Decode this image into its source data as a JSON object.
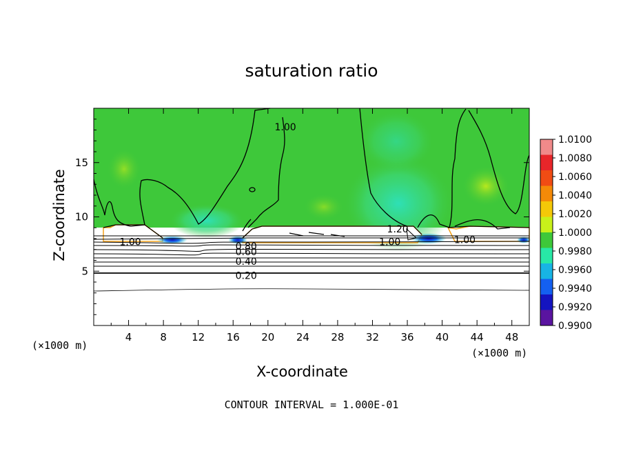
{
  "chart_data": {
    "type": "heatmap",
    "title": "saturation ratio",
    "xlabel": "X-coordinate",
    "ylabel": "Z-coordinate",
    "x_unit": "(×1000 m)",
    "x_unit_right": "(×1000 m)",
    "xlim": [
      0,
      50
    ],
    "ylim": [
      0,
      20
    ],
    "x_ticks": [
      4,
      8,
      12,
      16,
      20,
      24,
      28,
      32,
      36,
      40,
      44,
      48
    ],
    "y_ticks": [
      5,
      10,
      15
    ],
    "contour_interval_text": "CONTOUR INTERVAL = 1.000E-01",
    "colorbar": {
      "min": 0.99,
      "max": 1.01,
      "labels": [
        "1.0100",
        "1.0080",
        "1.0060",
        "1.0040",
        "1.0020",
        "1.0000",
        "0.9980",
        "0.9960",
        "0.9940",
        "0.9920",
        "0.9900"
      ],
      "colors": [
        "#f08a8a",
        "#e8262a",
        "#f04c14",
        "#f48a08",
        "#f4c808",
        "#c8f01a",
        "#3ec83a",
        "#28e8a6",
        "#18b4e4",
        "#1460f0",
        "#1414c0",
        "#5a14a0"
      ]
    },
    "contour_labels": [
      {
        "text": "1.00",
        "x": 4.2,
        "z": 7.7
      },
      {
        "text": "1.00",
        "x": 22.0,
        "z": 18.3
      },
      {
        "text": "0.80",
        "x": 17.5,
        "z": 7.3
      },
      {
        "text": "0.60",
        "x": 17.5,
        "z": 6.8
      },
      {
        "text": "0.40",
        "x": 17.5,
        "z": 5.9
      },
      {
        "text": "0.20",
        "x": 17.5,
        "z": 4.6
      },
      {
        "text": "1.20",
        "x": 34.9,
        "z": 8.9
      },
      {
        "text": "1.00",
        "x": 34.0,
        "z": 7.7
      },
      {
        "text": "1.00",
        "x": 42.6,
        "z": 7.9
      }
    ]
  }
}
